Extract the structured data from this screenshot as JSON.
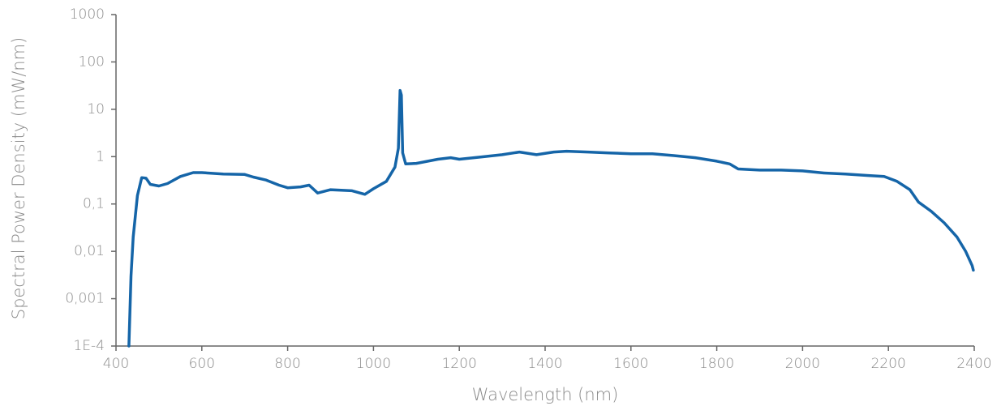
{
  "chart_data": {
    "type": "line",
    "xlabel": "Wavelength (nm)",
    "ylabel": "Spectral Power Density (mW/nm)",
    "yscale": "log",
    "xlim": [
      400,
      2400
    ],
    "xticks": [
      400,
      600,
      800,
      1000,
      1200,
      1400,
      1600,
      1800,
      2000,
      2200,
      2400
    ],
    "ylim": [
      0.0001,
      1000
    ],
    "yticks": [
      {
        "value": 0.0001,
        "label": "1E-4"
      },
      {
        "value": 0.001,
        "label": "0,001"
      },
      {
        "value": 0.01,
        "label": "0,01"
      },
      {
        "value": 0.1,
        "label": "0,1"
      },
      1,
      10,
      100,
      1000
    ],
    "grid": false,
    "series": [
      {
        "name": null,
        "color": "#1565a8",
        "x": [
          430,
          435,
          440,
          450,
          460,
          470,
          480,
          500,
          520,
          550,
          580,
          600,
          650,
          700,
          720,
          750,
          780,
          800,
          830,
          850,
          870,
          900,
          950,
          980,
          1000,
          1030,
          1050,
          1058,
          1062,
          1065,
          1068,
          1075,
          1100,
          1150,
          1180,
          1200,
          1250,
          1300,
          1340,
          1380,
          1420,
          1450,
          1500,
          1550,
          1600,
          1650,
          1700,
          1750,
          1800,
          1830,
          1850,
          1900,
          1950,
          2000,
          2050,
          2100,
          2150,
          2190,
          2220,
          2250,
          2270,
          2300,
          2330,
          2360,
          2380,
          2395,
          2398
        ],
        "values": [
          0.0001,
          0.003,
          0.02,
          0.15,
          0.36,
          0.35,
          0.26,
          0.24,
          0.27,
          0.38,
          0.46,
          0.46,
          0.43,
          0.42,
          0.37,
          0.32,
          0.25,
          0.22,
          0.23,
          0.25,
          0.17,
          0.2,
          0.19,
          0.16,
          0.21,
          0.3,
          0.6,
          1.5,
          25,
          20,
          1.2,
          0.7,
          0.72,
          0.88,
          0.95,
          0.88,
          0.98,
          1.1,
          1.25,
          1.1,
          1.25,
          1.3,
          1.25,
          1.2,
          1.15,
          1.15,
          1.05,
          0.95,
          0.8,
          0.7,
          0.55,
          0.52,
          0.52,
          0.5,
          0.45,
          0.43,
          0.4,
          0.38,
          0.3,
          0.2,
          0.11,
          0.07,
          0.04,
          0.02,
          0.01,
          0.005,
          0.004
        ]
      }
    ]
  }
}
